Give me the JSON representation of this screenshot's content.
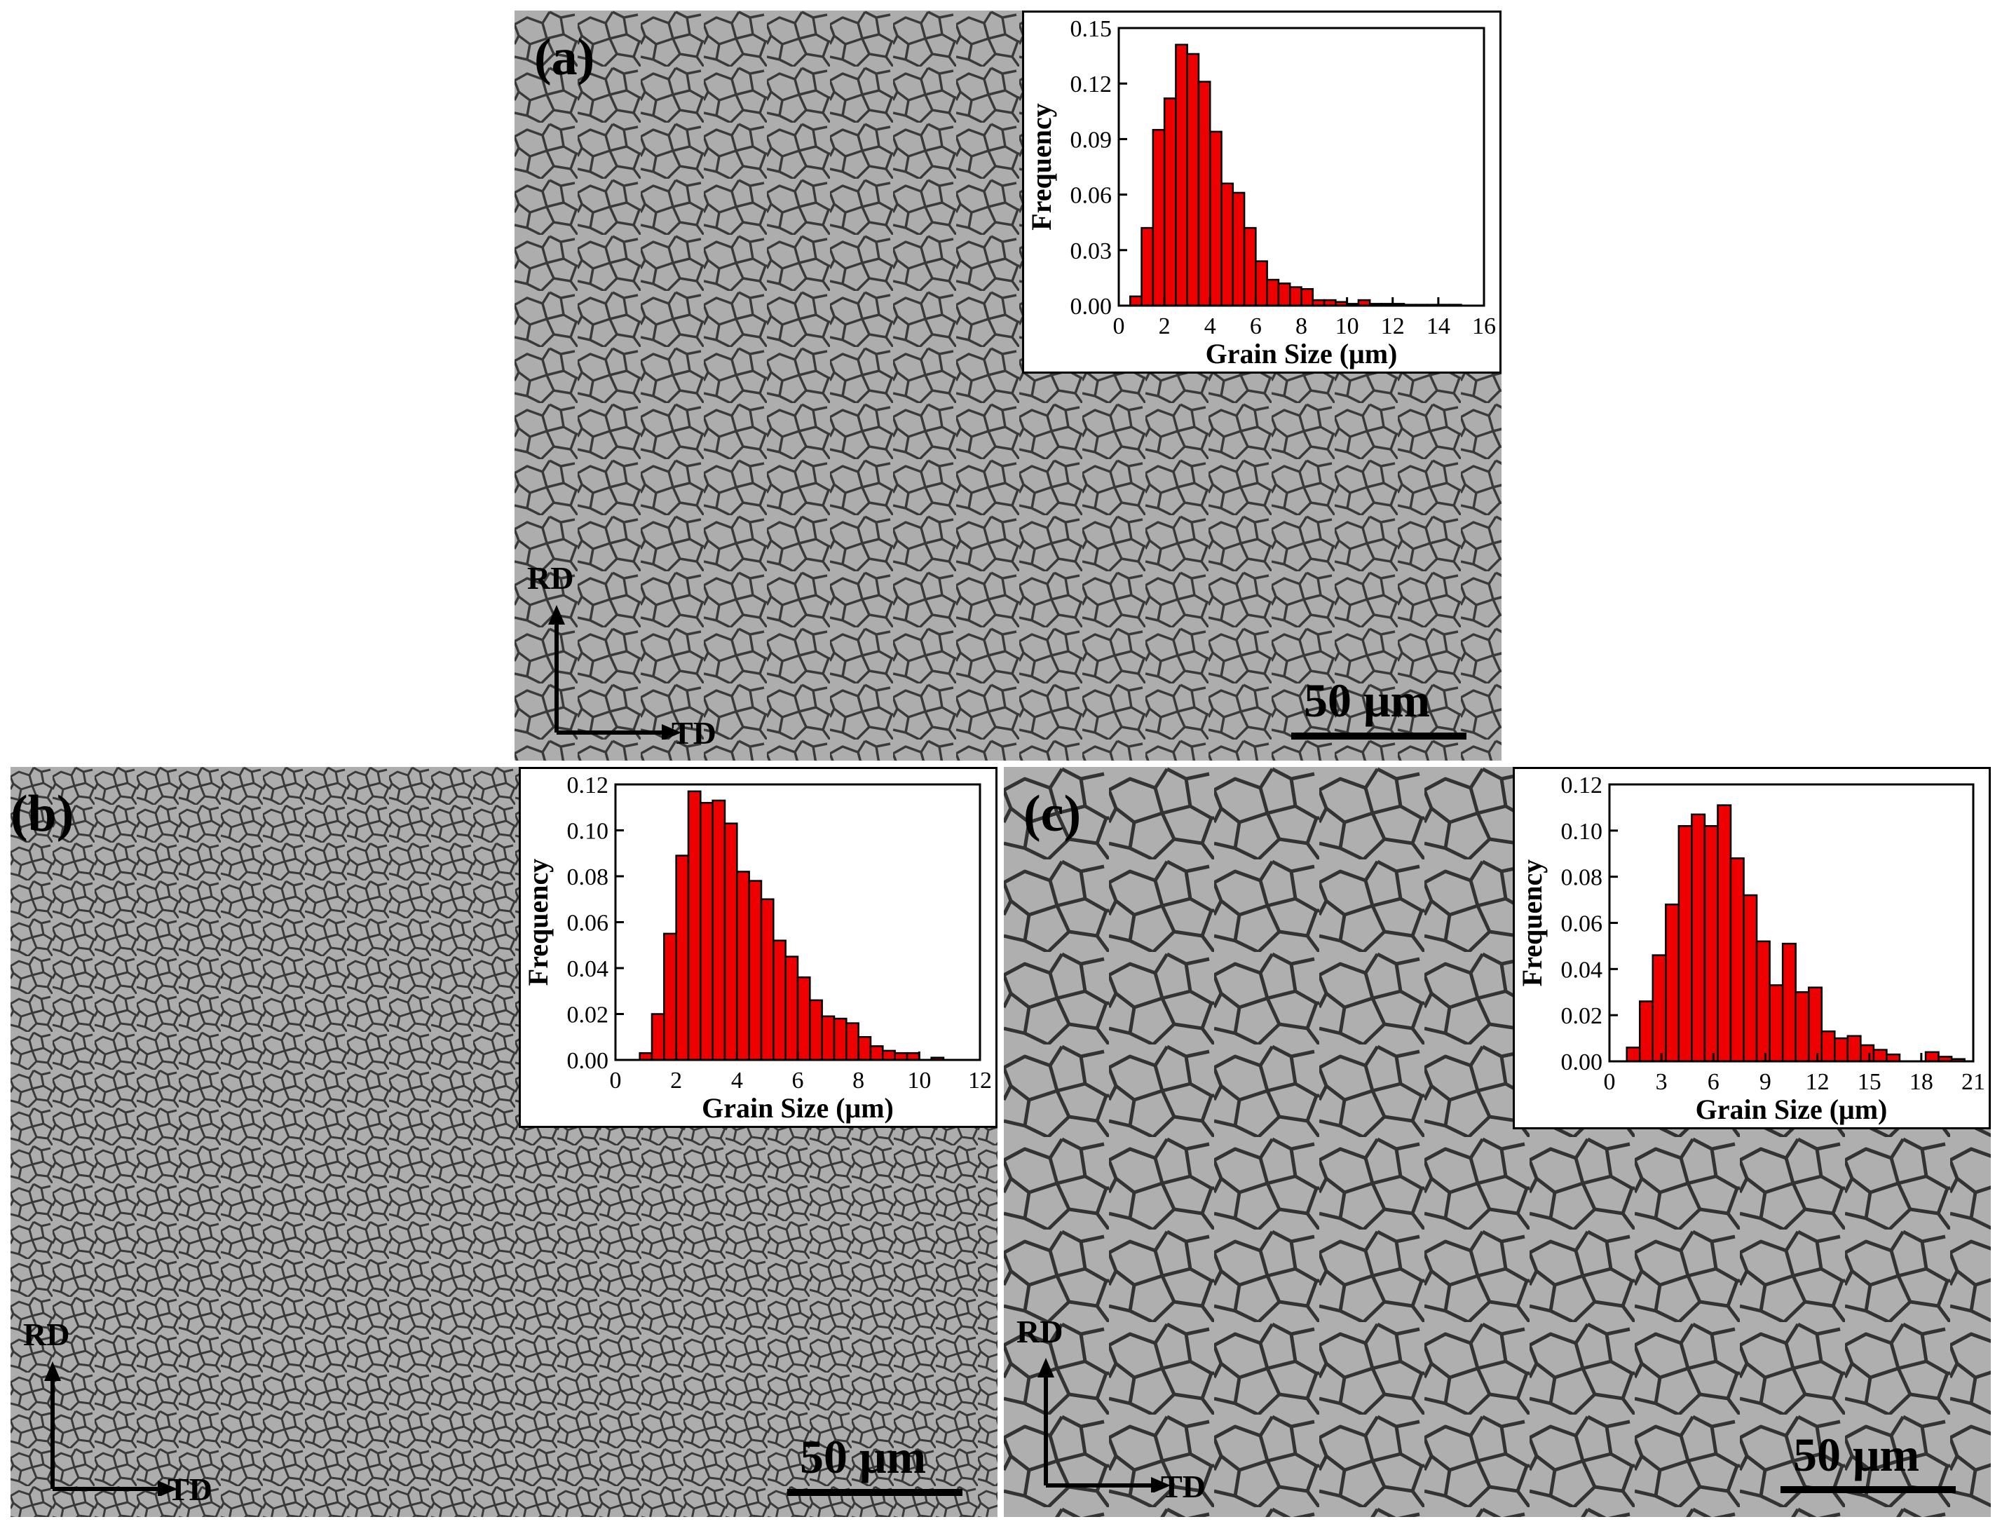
{
  "panels": [
    {
      "label": "(a)",
      "rd": "RD",
      "td": "TD",
      "scalebar": "50 μm"
    },
    {
      "label": "(b)",
      "rd": "RD",
      "td": "TD",
      "scalebar": "50 μm"
    },
    {
      "label": "(c)",
      "rd": "RD",
      "td": "TD",
      "scalebar": "50 μm"
    }
  ],
  "chart_data": [
    {
      "type": "bar",
      "panel": "(a)",
      "xlabel": "Grain Size (μm)",
      "ylabel": "Frequency",
      "xlim": [
        0,
        16
      ],
      "ylim": [
        0,
        0.15
      ],
      "xticks": [
        0,
        2,
        4,
        6,
        8,
        10,
        12,
        14,
        16
      ],
      "yticks": [
        0.0,
        0.03,
        0.06,
        0.09,
        0.12,
        0.15
      ],
      "xtick_labels": [
        "0",
        "2",
        "4",
        "6",
        "8",
        "10",
        "12",
        "14",
        "16"
      ],
      "ytick_labels": [
        "0.00",
        "0.03",
        "0.06",
        "0.09",
        "0.12",
        "0.15"
      ],
      "bin_width": 0.5,
      "bin_starts": [
        0.5,
        1.0,
        1.5,
        2.0,
        2.5,
        3.0,
        3.5,
        4.0,
        4.5,
        5.0,
        5.5,
        6.0,
        6.5,
        7.0,
        7.5,
        8.0,
        8.5,
        9.0,
        9.5,
        10.0,
        10.5,
        11.0,
        11.5,
        12.0,
        12.5,
        13.0,
        13.5,
        14.0,
        14.5
      ],
      "values": [
        0.005,
        0.042,
        0.095,
        0.112,
        0.141,
        0.136,
        0.121,
        0.094,
        0.066,
        0.061,
        0.042,
        0.024,
        0.014,
        0.012,
        0.01,
        0.009,
        0.003,
        0.003,
        0.002,
        0.001,
        0.003,
        0.001,
        0.001,
        0.001,
        0.0005,
        0.0005,
        0.0005,
        0.0005,
        0.0005
      ],
      "bar_color": "#ee0000"
    },
    {
      "type": "bar",
      "panel": "(b)",
      "xlabel": "Grain Size (μm)",
      "ylabel": "Frequency",
      "xlim": [
        0,
        12
      ],
      "ylim": [
        0,
        0.12
      ],
      "xticks": [
        0,
        2,
        4,
        6,
        8,
        10,
        12
      ],
      "yticks": [
        0.0,
        0.02,
        0.04,
        0.06,
        0.08,
        0.1,
        0.12
      ],
      "xtick_labels": [
        "0",
        "2",
        "4",
        "6",
        "8",
        "10",
        "12"
      ],
      "ytick_labels": [
        "0.00",
        "0.02",
        "0.04",
        "0.06",
        "0.08",
        "0.10",
        "0.12"
      ],
      "bin_width": 0.4,
      "bin_starts": [
        0.8,
        1.2,
        1.6,
        2.0,
        2.4,
        2.8,
        3.2,
        3.6,
        4.0,
        4.4,
        4.8,
        5.2,
        5.6,
        6.0,
        6.4,
        6.8,
        7.2,
        7.6,
        8.0,
        8.4,
        8.8,
        9.2,
        9.6,
        10.0,
        10.4
      ],
      "values": [
        0.003,
        0.02,
        0.055,
        0.089,
        0.117,
        0.112,
        0.113,
        0.103,
        0.082,
        0.078,
        0.07,
        0.052,
        0.045,
        0.036,
        0.026,
        0.019,
        0.018,
        0.016,
        0.01,
        0.006,
        0.004,
        0.003,
        0.003,
        0.0,
        0.001
      ],
      "bar_color": "#ee0000"
    },
    {
      "type": "bar",
      "panel": "(c)",
      "xlabel": "Grain Size (μm)",
      "ylabel": "Frequency",
      "xlim": [
        0,
        21
      ],
      "ylim": [
        0,
        0.12
      ],
      "xticks": [
        0,
        3,
        6,
        9,
        12,
        15,
        18,
        21
      ],
      "yticks": [
        0.0,
        0.02,
        0.04,
        0.06,
        0.08,
        0.1,
        0.12
      ],
      "xtick_labels": [
        "0",
        "3",
        "6",
        "9",
        "12",
        "15",
        "18",
        "21"
      ],
      "ytick_labels": [
        "0.00",
        "0.02",
        "0.04",
        "0.06",
        "0.08",
        "0.10",
        "0.12"
      ],
      "bin_width": 0.75,
      "bin_starts": [
        1.0,
        1.75,
        2.5,
        3.25,
        4.0,
        4.75,
        5.5,
        6.25,
        7.0,
        7.75,
        8.5,
        9.25,
        10.0,
        10.75,
        11.5,
        12.25,
        13.0,
        13.75,
        14.5,
        15.25,
        16.0,
        16.75,
        17.5,
        18.25,
        19.0,
        19.75
      ],
      "values": [
        0.006,
        0.026,
        0.046,
        0.068,
        0.102,
        0.107,
        0.102,
        0.111,
        0.088,
        0.072,
        0.052,
        0.033,
        0.051,
        0.03,
        0.032,
        0.013,
        0.01,
        0.011,
        0.007,
        0.005,
        0.003,
        0.0,
        0.0,
        0.004,
        0.002,
        0.001
      ],
      "bar_color": "#ee0000"
    }
  ]
}
